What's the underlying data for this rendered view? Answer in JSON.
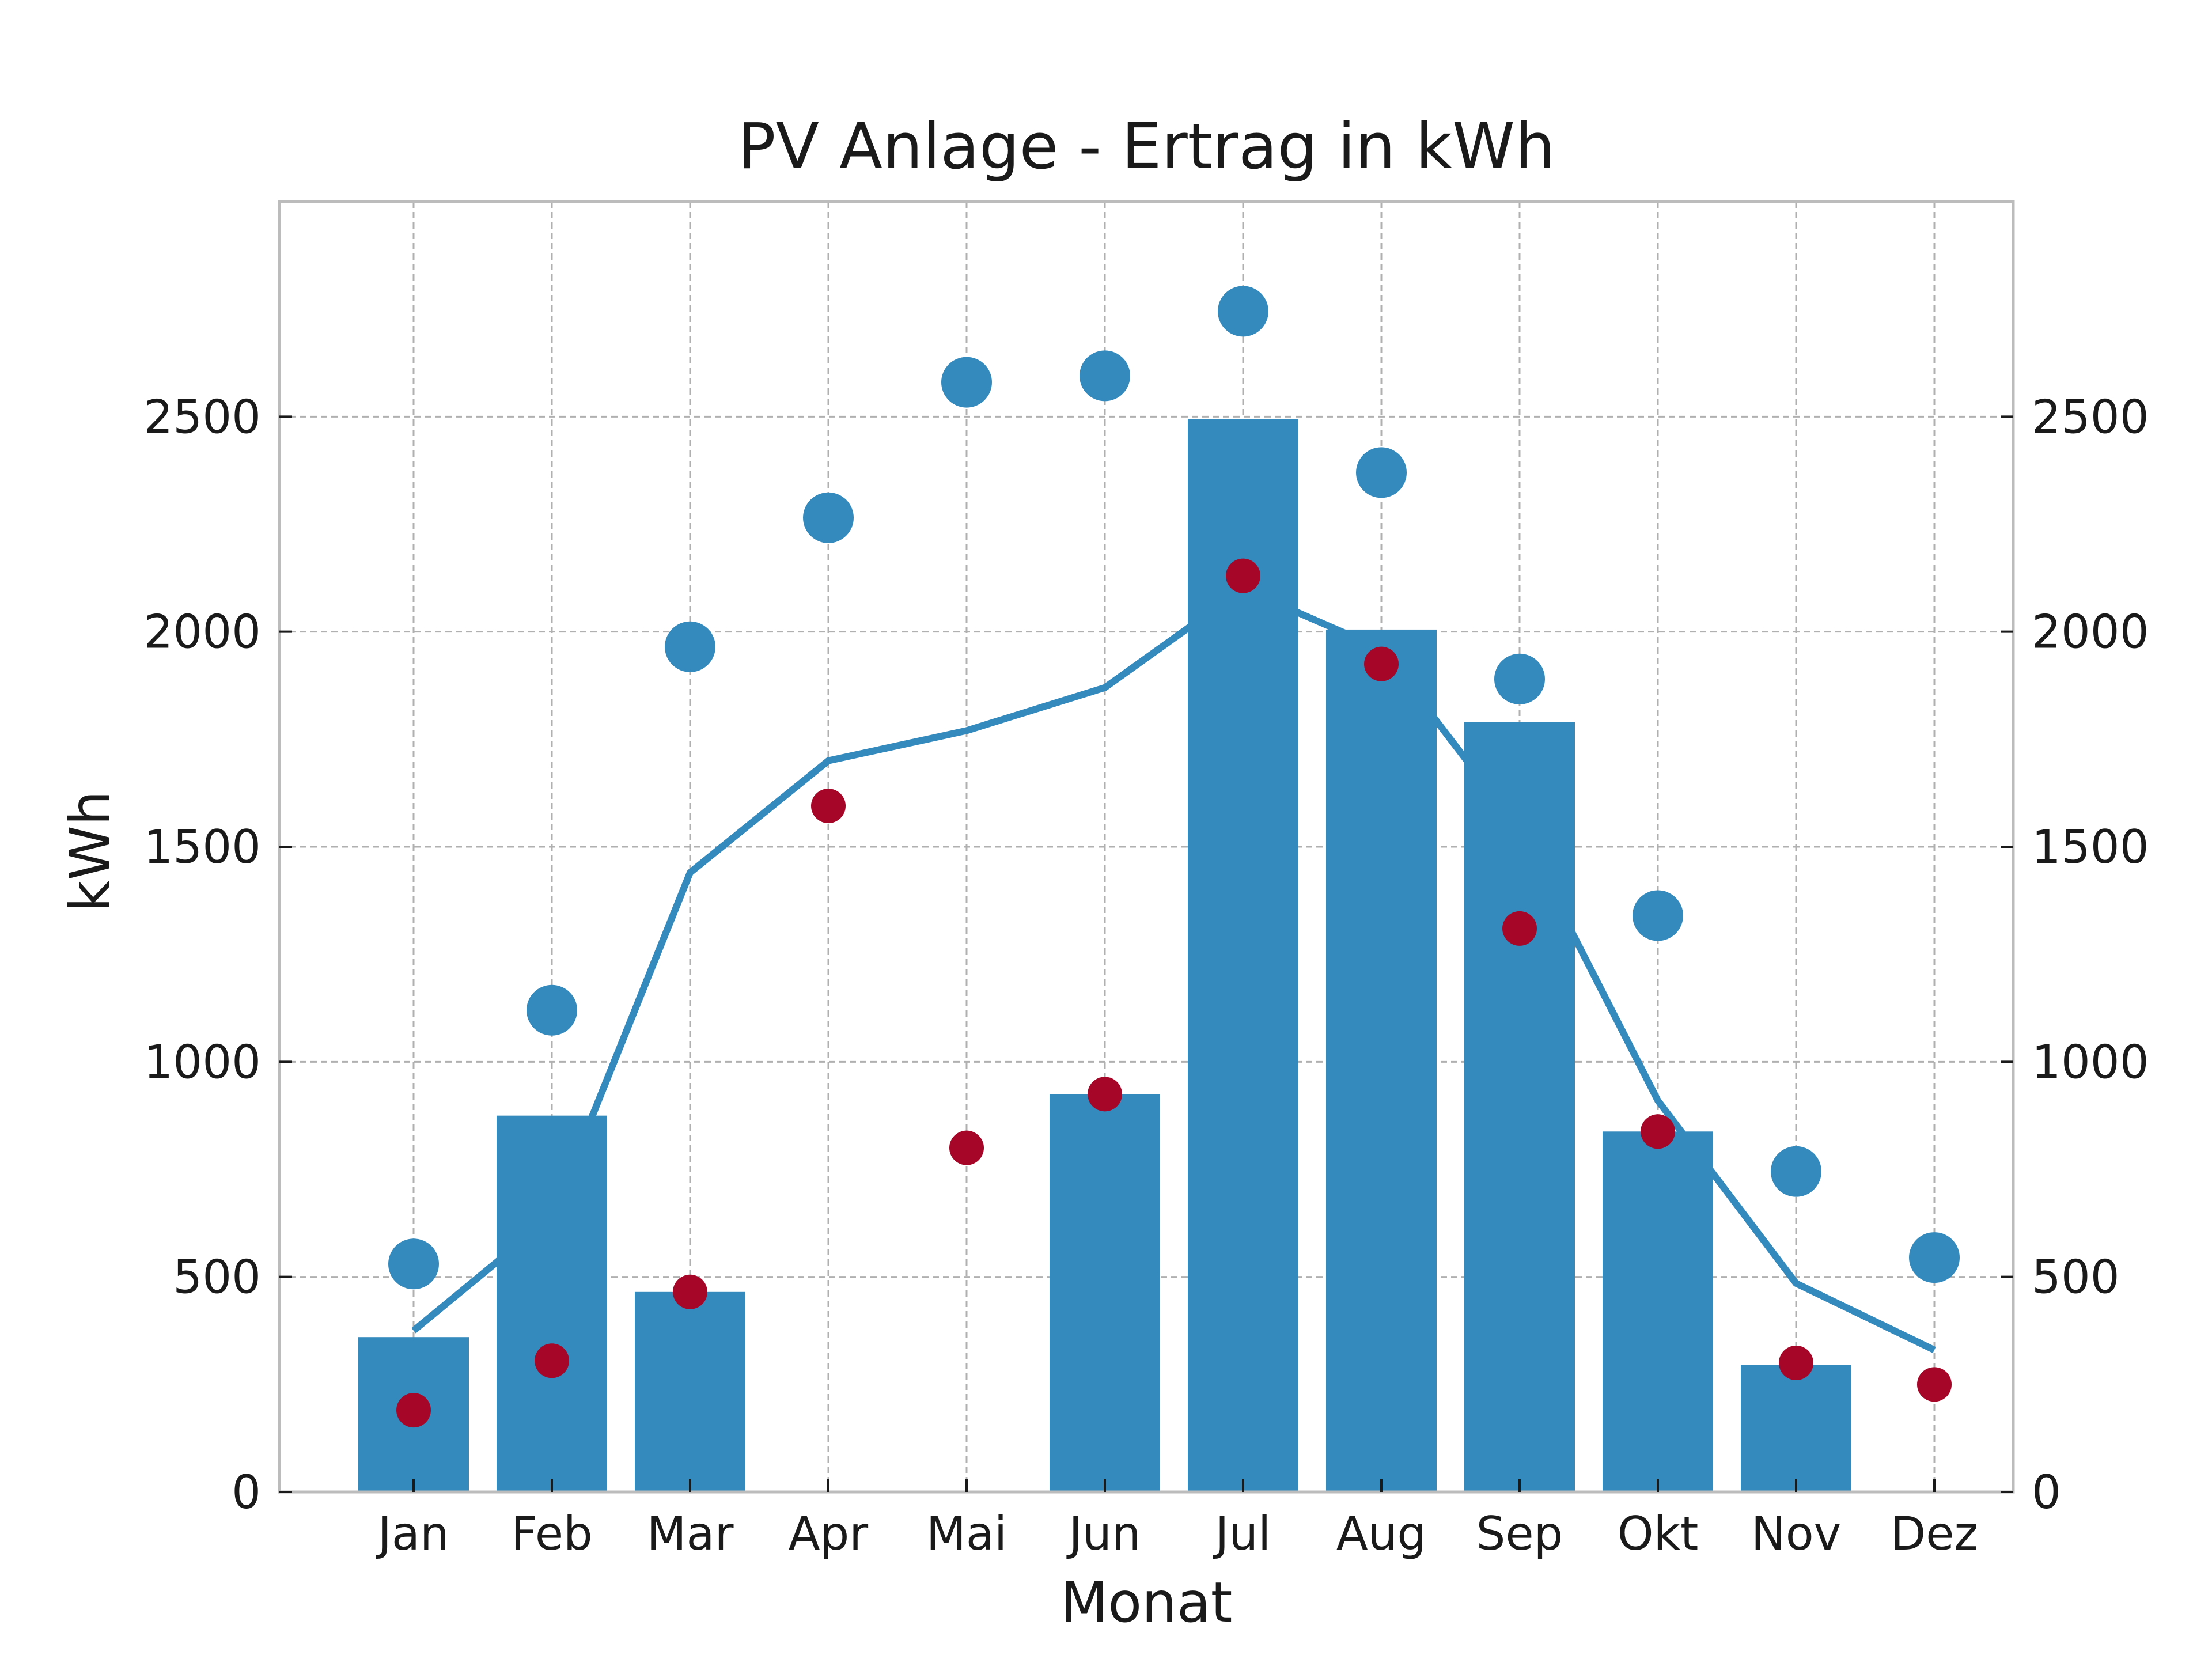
{
  "colors": {
    "bar": "#348abd",
    "line": "#348abd",
    "big_dot": "#348abd",
    "small_dot": "#a60628",
    "grid": "#b0b0b0",
    "frame": "#bcbcbc",
    "text": "#1a1a1a"
  },
  "chart_data": {
    "type": "bar",
    "title": "PV Anlage - Ertrag in kWh",
    "xlabel": "Monat",
    "ylabel": "kWh",
    "ylim": [
      0,
      3000
    ],
    "yticks": [
      0,
      500,
      1000,
      1500,
      2000,
      2500
    ],
    "ytick_labels": [
      "0",
      "500",
      "1000",
      "1500",
      "2000",
      "2500"
    ],
    "right_axis_ticks": true,
    "grid": true,
    "categories": [
      "Jan",
      "Feb",
      "Mar",
      "Apr",
      "Mai",
      "Jun",
      "Jul",
      "Aug",
      "Sep",
      "Okt",
      "Nov",
      "Dez"
    ],
    "series": [
      {
        "type": "bar",
        "values": [
          360,
          875,
          465,
          0,
          0,
          925,
          2495,
          2005,
          1790,
          838,
          295,
          0
        ]
      },
      {
        "type": "line",
        "values": [
          375,
          640,
          1440,
          1700,
          1770,
          1870,
          2100,
          1960,
          1540,
          910,
          485,
          330
        ]
      },
      {
        "type": "scatter",
        "marker": "large",
        "values": [
          530,
          1120,
          1965,
          2265,
          2580,
          2595,
          2745,
          2370,
          1890,
          1340,
          745,
          545
        ]
      },
      {
        "type": "scatter",
        "marker": "small",
        "values": [
          190,
          305,
          465,
          1595,
          800,
          925,
          2130,
          1925,
          1310,
          838,
          300,
          250
        ]
      }
    ]
  }
}
